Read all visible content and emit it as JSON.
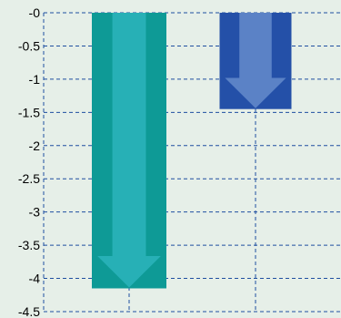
{
  "chart_data": {
    "type": "bar",
    "categories": [
      "",
      ""
    ],
    "values": [
      -4.15,
      -1.45
    ],
    "ylim": [
      -4.5,
      0
    ],
    "yticks": [
      0,
      -0.5,
      -1,
      -1.5,
      -2,
      -2.5,
      -3,
      -3.5,
      -4,
      -4.5
    ],
    "ytick_labels": [
      "-0",
      "-0.5",
      "-1",
      "-1.5",
      "-2",
      "-2.5",
      "-3",
      "-3.5",
      "-4",
      "-4.5"
    ],
    "title": "",
    "xlabel": "",
    "ylabel": "",
    "grid": true,
    "grid_style": "dashed",
    "bar_style": "down-arrow",
    "colors": {
      "background": "#e6efe8",
      "grid": "#1f4fa0",
      "bar_1": "#0e9a96",
      "bar_1_arrow": "#27b0b6",
      "bar_2": "#2450a8",
      "bar_2_arrow": "#5b82c6"
    }
  }
}
